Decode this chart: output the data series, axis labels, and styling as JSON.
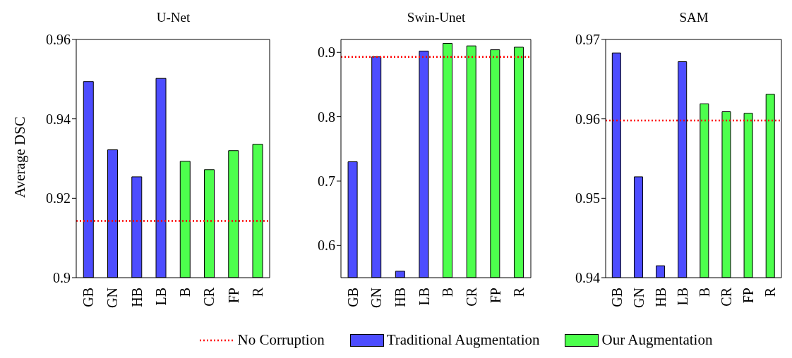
{
  "chart_data": [
    {
      "type": "bar",
      "title": "U-Net",
      "ylabel": "Average DSC",
      "categories": [
        "GB",
        "GN",
        "HB",
        "LB",
        "B",
        "CR",
        "FP",
        "R"
      ],
      "stacked": true,
      "legend": "bottom",
      "series": [
        {
          "name": "Traditional Augmentation",
          "color": "#4d4dff",
          "values": [
            0.9494,
            0.9322,
            0.9254,
            0.9502,
            null,
            null,
            null,
            null
          ]
        },
        {
          "name": "Our Augmentation",
          "color": "#4dff4d",
          "values": [
            null,
            null,
            null,
            null,
            0.9293,
            0.9272,
            0.932,
            0.9336
          ]
        }
      ],
      "ylim": [
        0.9,
        0.96
      ],
      "yticks": [
        0.9,
        0.92,
        0.94,
        0.96
      ],
      "ref_lines": [
        {
          "axis": "y",
          "value": 0.9143,
          "label": "No Corruption",
          "color": "#ff0000",
          "line_style": "dotted"
        }
      ]
    },
    {
      "type": "bar",
      "title": "Swin-Unet",
      "categories": [
        "GB",
        "GN",
        "HB",
        "LB",
        "B",
        "CR",
        "FP",
        "R"
      ],
      "stacked": true,
      "series": [
        {
          "color": "#4d4dff",
          "values": [
            0.73,
            0.893,
            0.56,
            0.902,
            null,
            null,
            null,
            null
          ]
        },
        {
          "color": "#4dff4d",
          "values": [
            null,
            null,
            null,
            null,
            0.914,
            0.91,
            0.904,
            0.908
          ]
        }
      ],
      "ylim": [
        0.55,
        0.92
      ],
      "yticks": [
        0.6,
        0.7,
        0.8,
        0.9
      ],
      "ref_lines": [
        {
          "axis": "y",
          "value": 0.893,
          "color": "#ff0000",
          "line_style": "dotted"
        }
      ]
    },
    {
      "type": "bar",
      "title": "SAM",
      "categories": [
        "GB",
        "GN",
        "HB",
        "LB",
        "B",
        "CR",
        "FP",
        "R"
      ],
      "stacked": true,
      "series": [
        {
          "color": "#4d4dff",
          "values": [
            0.9683,
            0.9527,
            0.9415,
            0.9672,
            null,
            null,
            null,
            null
          ]
        },
        {
          "color": "#4dff4d",
          "values": [
            null,
            null,
            null,
            null,
            0.9619,
            0.9609,
            0.9607,
            0.9631
          ]
        }
      ],
      "ylim": [
        0.94,
        0.97
      ],
      "yticks": [
        0.94,
        0.95,
        0.96,
        0.97
      ],
      "ref_lines": [
        {
          "axis": "y",
          "value": 0.9598,
          "color": "#ff0000",
          "line_style": "dotted"
        }
      ]
    }
  ]
}
